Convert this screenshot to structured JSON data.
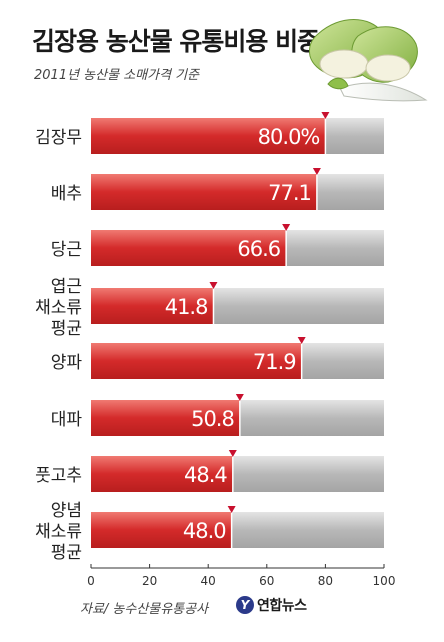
{
  "title": "김장용 농산물 유통비용 비중",
  "subtitle": "2011년 농산물 소매가격 기준",
  "source": "자료/ 농수산물유통공사",
  "logo": {
    "mark": "Y",
    "text": "연합뉴스"
  },
  "colors": {
    "bar_fill": "#d42a2a",
    "bar_fill_light": "#f07a72",
    "track": "#b8b8b8",
    "track_light": "#e4e4e4",
    "marker": "#c8102e",
    "value_text": "#ffffff"
  },
  "illustration": {
    "icon": "napa-cabbage-and-radish-icon"
  },
  "chart_data": {
    "type": "bar",
    "orientation": "horizontal",
    "title": "김장용 농산물 유통비용 비중",
    "subtitle": "2011년 농산물 소매가격 기준",
    "categories": [
      [
        "김장무"
      ],
      [
        "배추"
      ],
      [
        "당근"
      ],
      [
        "엽근",
        "채소류",
        "평균"
      ],
      [
        "양파"
      ],
      [
        "대파"
      ],
      [
        "풋고추"
      ],
      [
        "양념",
        "채소류",
        "평균"
      ]
    ],
    "values": [
      80.0,
      77.1,
      66.6,
      41.8,
      71.9,
      50.8,
      48.4,
      48.0
    ],
    "value_labels": [
      "80.0%",
      "77.1",
      "66.6",
      "41.8",
      "71.9",
      "50.8",
      "48.4",
      "48.0"
    ],
    "xlim": [
      0,
      100
    ],
    "xticks": [
      0,
      20,
      40,
      60,
      80,
      100
    ],
    "grid": false,
    "legend": "none"
  }
}
